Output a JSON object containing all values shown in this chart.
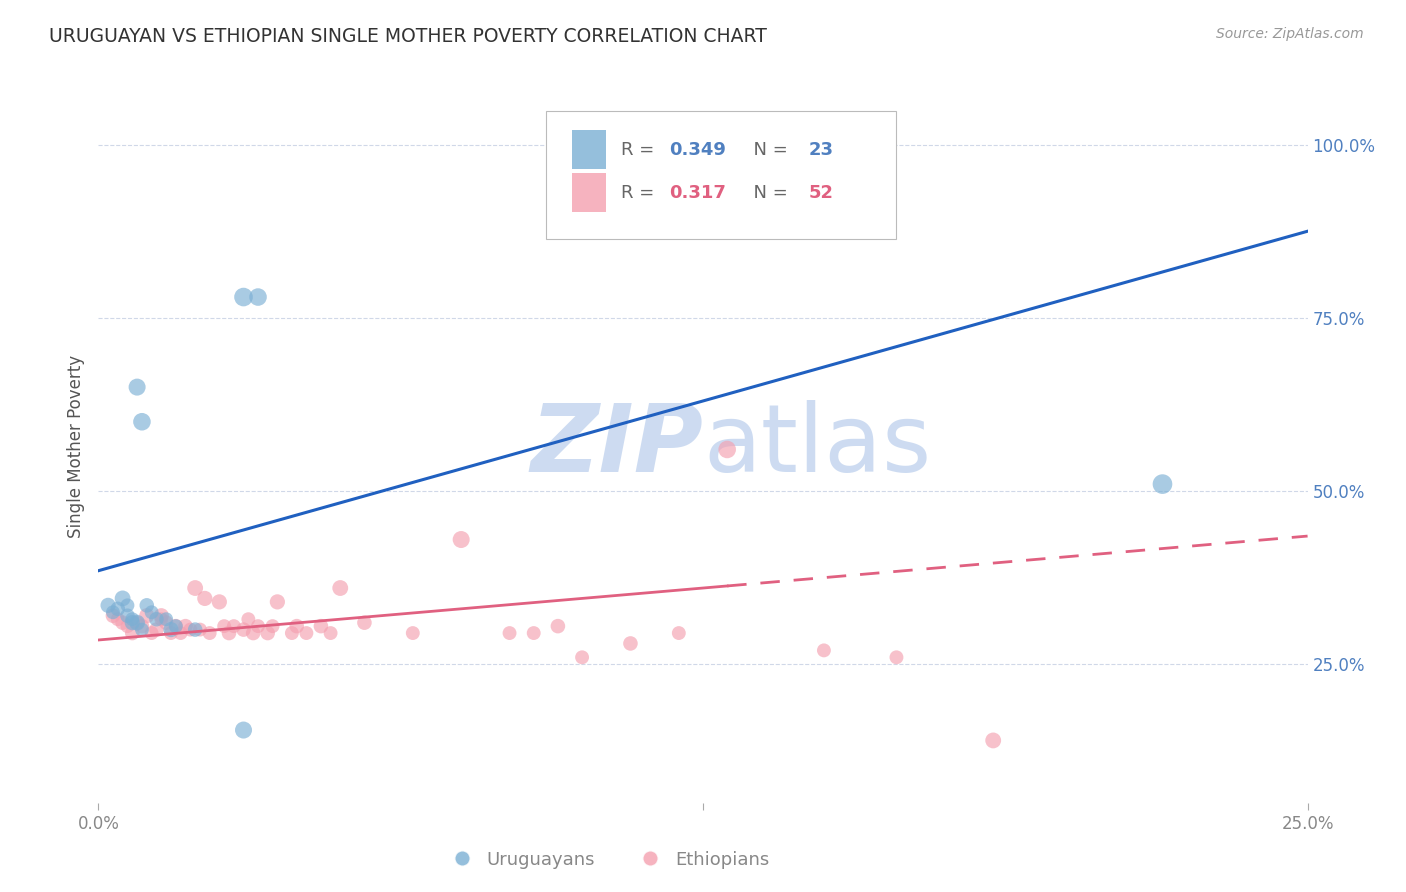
{
  "title": "URUGUAYAN VS ETHIOPIAN SINGLE MOTHER POVERTY CORRELATION CHART",
  "source": "Source: ZipAtlas.com",
  "ylabel": "Single Mother Poverty",
  "legend_blue_R": "0.349",
  "legend_blue_N": "23",
  "legend_pink_R": "0.317",
  "legend_pink_N": "52",
  "legend_label_blue": "Uruguayans",
  "legend_label_pink": "Ethiopians",
  "ytick_labels": [
    "25.0%",
    "50.0%",
    "75.0%",
    "100.0%"
  ],
  "ytick_values": [
    0.25,
    0.5,
    0.75,
    1.0
  ],
  "xlim": [
    0.0,
    0.25
  ],
  "ylim": [
    0.05,
    1.08
  ],
  "blue_color": "#7bafd4",
  "pink_color": "#f4a0b0",
  "trend_blue_color": "#2060c0",
  "trend_pink_color": "#e06080",
  "watermark_color": "#c8d8f0",
  "grid_color": "#d0d8e8",
  "axis_label_color": "#5080c0",
  "uruguayan_x": [
    0.002,
    0.003,
    0.004,
    0.005,
    0.006,
    0.006,
    0.007,
    0.007,
    0.008,
    0.008,
    0.009,
    0.009,
    0.01,
    0.011,
    0.012,
    0.014,
    0.015,
    0.016,
    0.02,
    0.03,
    0.033,
    0.22,
    0.03
  ],
  "uruguayan_y": [
    0.335,
    0.325,
    0.33,
    0.345,
    0.335,
    0.32,
    0.315,
    0.31,
    0.31,
    0.65,
    0.3,
    0.6,
    0.335,
    0.325,
    0.315,
    0.315,
    0.3,
    0.305,
    0.3,
    0.78,
    0.78,
    0.51,
    0.155
  ],
  "uruguayan_sizes": [
    120,
    100,
    110,
    130,
    100,
    110,
    100,
    120,
    130,
    150,
    100,
    160,
    110,
    100,
    110,
    100,
    120,
    100,
    110,
    180,
    160,
    200,
    150
  ],
  "ethiopian_x": [
    0.003,
    0.004,
    0.005,
    0.006,
    0.007,
    0.008,
    0.009,
    0.01,
    0.011,
    0.012,
    0.013,
    0.013,
    0.014,
    0.015,
    0.016,
    0.017,
    0.018,
    0.019,
    0.02,
    0.021,
    0.022,
    0.023,
    0.025,
    0.026,
    0.027,
    0.028,
    0.03,
    0.031,
    0.032,
    0.033,
    0.035,
    0.036,
    0.037,
    0.04,
    0.041,
    0.043,
    0.046,
    0.048,
    0.05,
    0.055,
    0.065,
    0.075,
    0.085,
    0.09,
    0.095,
    0.1,
    0.11,
    0.12,
    0.13,
    0.15,
    0.165,
    0.185
  ],
  "ethiopian_y": [
    0.32,
    0.315,
    0.31,
    0.305,
    0.295,
    0.31,
    0.305,
    0.32,
    0.295,
    0.3,
    0.32,
    0.315,
    0.31,
    0.295,
    0.305,
    0.295,
    0.305,
    0.3,
    0.36,
    0.3,
    0.345,
    0.295,
    0.34,
    0.305,
    0.295,
    0.305,
    0.3,
    0.315,
    0.295,
    0.305,
    0.295,
    0.305,
    0.34,
    0.295,
    0.305,
    0.295,
    0.305,
    0.295,
    0.36,
    0.31,
    0.295,
    0.43,
    0.295,
    0.295,
    0.305,
    0.26,
    0.28,
    0.295,
    0.56,
    0.27,
    0.26,
    0.14
  ],
  "ethiopian_sizes": [
    110,
    100,
    110,
    100,
    110,
    100,
    110,
    120,
    100,
    110,
    120,
    100,
    110,
    100,
    110,
    100,
    110,
    100,
    130,
    100,
    120,
    100,
    120,
    100,
    110,
    100,
    110,
    100,
    110,
    100,
    110,
    100,
    120,
    100,
    110,
    100,
    110,
    100,
    130,
    110,
    100,
    150,
    100,
    100,
    110,
    100,
    110,
    100,
    160,
    100,
    100,
    130
  ],
  "blue_trend_x0": 0.0,
  "blue_trend_y0": 0.385,
  "blue_trend_x1": 0.25,
  "blue_trend_y1": 0.875,
  "pink_trend_x0": 0.0,
  "pink_trend_y0": 0.285,
  "pink_trend_x1": 0.25,
  "pink_trend_y1": 0.435,
  "pink_dash_split": 0.13
}
